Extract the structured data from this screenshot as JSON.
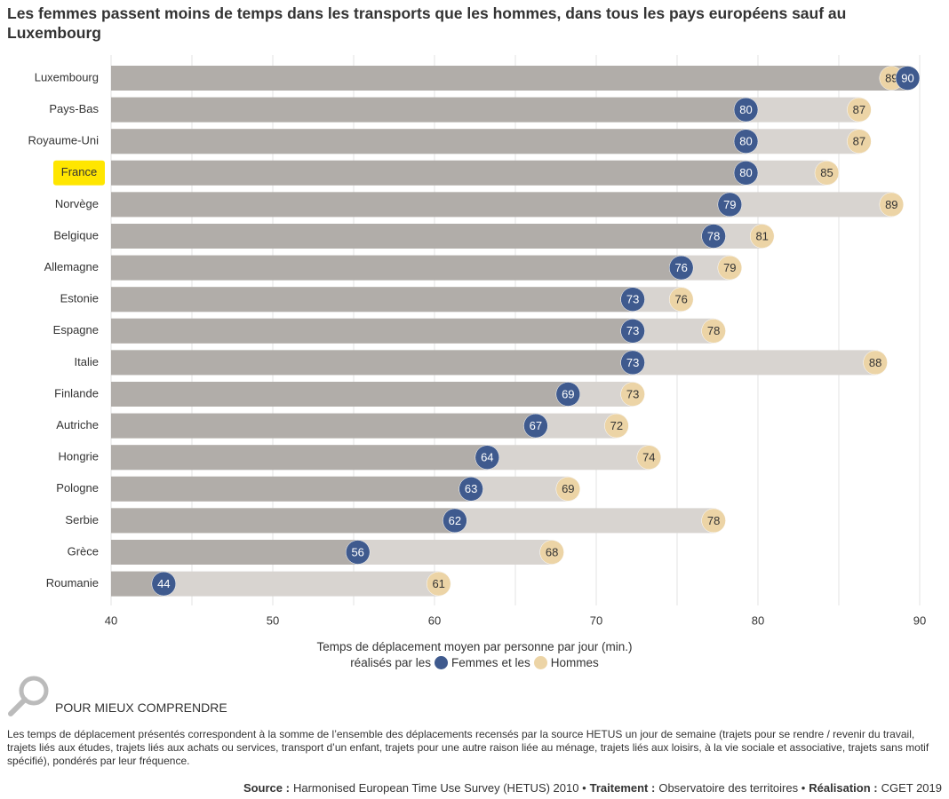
{
  "chart_data": {
    "type": "dumbbell_bar",
    "title": "Les femmes passent moins de temps dans les transports que les hommes, dans tous les pays européens sauf au Luxembourg",
    "categories": [
      "Luxembourg",
      "Pays-Bas",
      "Royaume-Uni",
      "France",
      "Norvège",
      "Belgique",
      "Allemagne",
      "Estonie",
      "Espagne",
      "Italie",
      "Finlande",
      "Autriche",
      "Hongrie",
      "Pologne",
      "Serbie",
      "Grèce",
      "Roumanie"
    ],
    "series": [
      {
        "name": "Femmes",
        "color": "#3f5a8e",
        "bar_color": "#b1ada9",
        "text_color": "#ffffff",
        "values": [
          90,
          80,
          80,
          80,
          79,
          78,
          76,
          73,
          73,
          73,
          69,
          67,
          64,
          63,
          62,
          56,
          44
        ]
      },
      {
        "name": "Hommes",
        "color": "#ecd4a6",
        "bar_color": "#d8d4d0",
        "text_color": "#333333",
        "values": [
          89,
          87,
          87,
          85,
          89,
          81,
          79,
          76,
          78,
          88,
          73,
          72,
          74,
          69,
          78,
          68,
          61
        ]
      }
    ],
    "xlim": [
      40,
      90
    ],
    "xticks": [
      40,
      50,
      60,
      70,
      80,
      90
    ],
    "minor_grid": [
      45,
      55,
      65,
      75,
      85
    ],
    "grid": true,
    "highlight_index": 3,
    "highlight_color": "#ffe600",
    "x_label": "Temps de déplacement moyen par personne par jour (min.)",
    "legend_prefix": "réalisés par les",
    "legend_joiner": "et les"
  },
  "notes": {
    "heading": "POUR MIEUX COMPRENDRE",
    "text": "Les temps de déplacement présentés correspondent à la somme de l’ensemble des déplacements recensés par la source HETUS un jour de semaine (trajets pour se rendre / revenir du travail, trajets liés aux études, trajets liés aux achats ou services, transport d’un enfant, trajets pour une autre raison liée au ménage, trajets liés aux loisirs, à la vie sociale et associative, trajets sans motif spécifié), pondérés par leur fréquence."
  },
  "credits": [
    {
      "label": "Source :",
      "text": "Harmonised European Time Use Survey (HETUS) 2010 •"
    },
    {
      "label": "Traitement :",
      "text": "Observatoire des territoires •"
    },
    {
      "label": "Réalisation :",
      "text": "CGET 2019"
    }
  ]
}
